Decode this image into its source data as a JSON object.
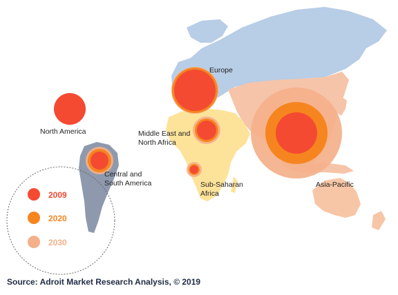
{
  "source": "Source: Adroit Market Research Analysis, © 2019",
  "colors": {
    "y2009": "#f44a32",
    "y2020": "#f6851f",
    "y2030": "#f4b08a",
    "north_america_land": "#ffffff",
    "south_america_land": "#8e99ad",
    "europe_land": "#b8cde6",
    "africa_land": "#fde39a",
    "asia_land": "#f6c4a8",
    "oceania_land": "#f7c6a6"
  },
  "regions": {
    "north_america": "North America",
    "europe": "Europe",
    "central_south_america_line1": "Central and",
    "central_south_america_line2": "South America",
    "middle_east_africa_line1": "Middle East and",
    "middle_east_africa_line2": "North Africa",
    "sub_saharan_line1": "Sub-Saharan",
    "sub_saharan_line2": "Africa",
    "asia_pacific": "Asia-Pacific"
  },
  "legend": [
    {
      "label": "2009",
      "color": "#f44a32"
    },
    {
      "label": "2020",
      "color": "#f6851f"
    },
    {
      "label": "2030",
      "color": "#f4b08a"
    }
  ]
}
